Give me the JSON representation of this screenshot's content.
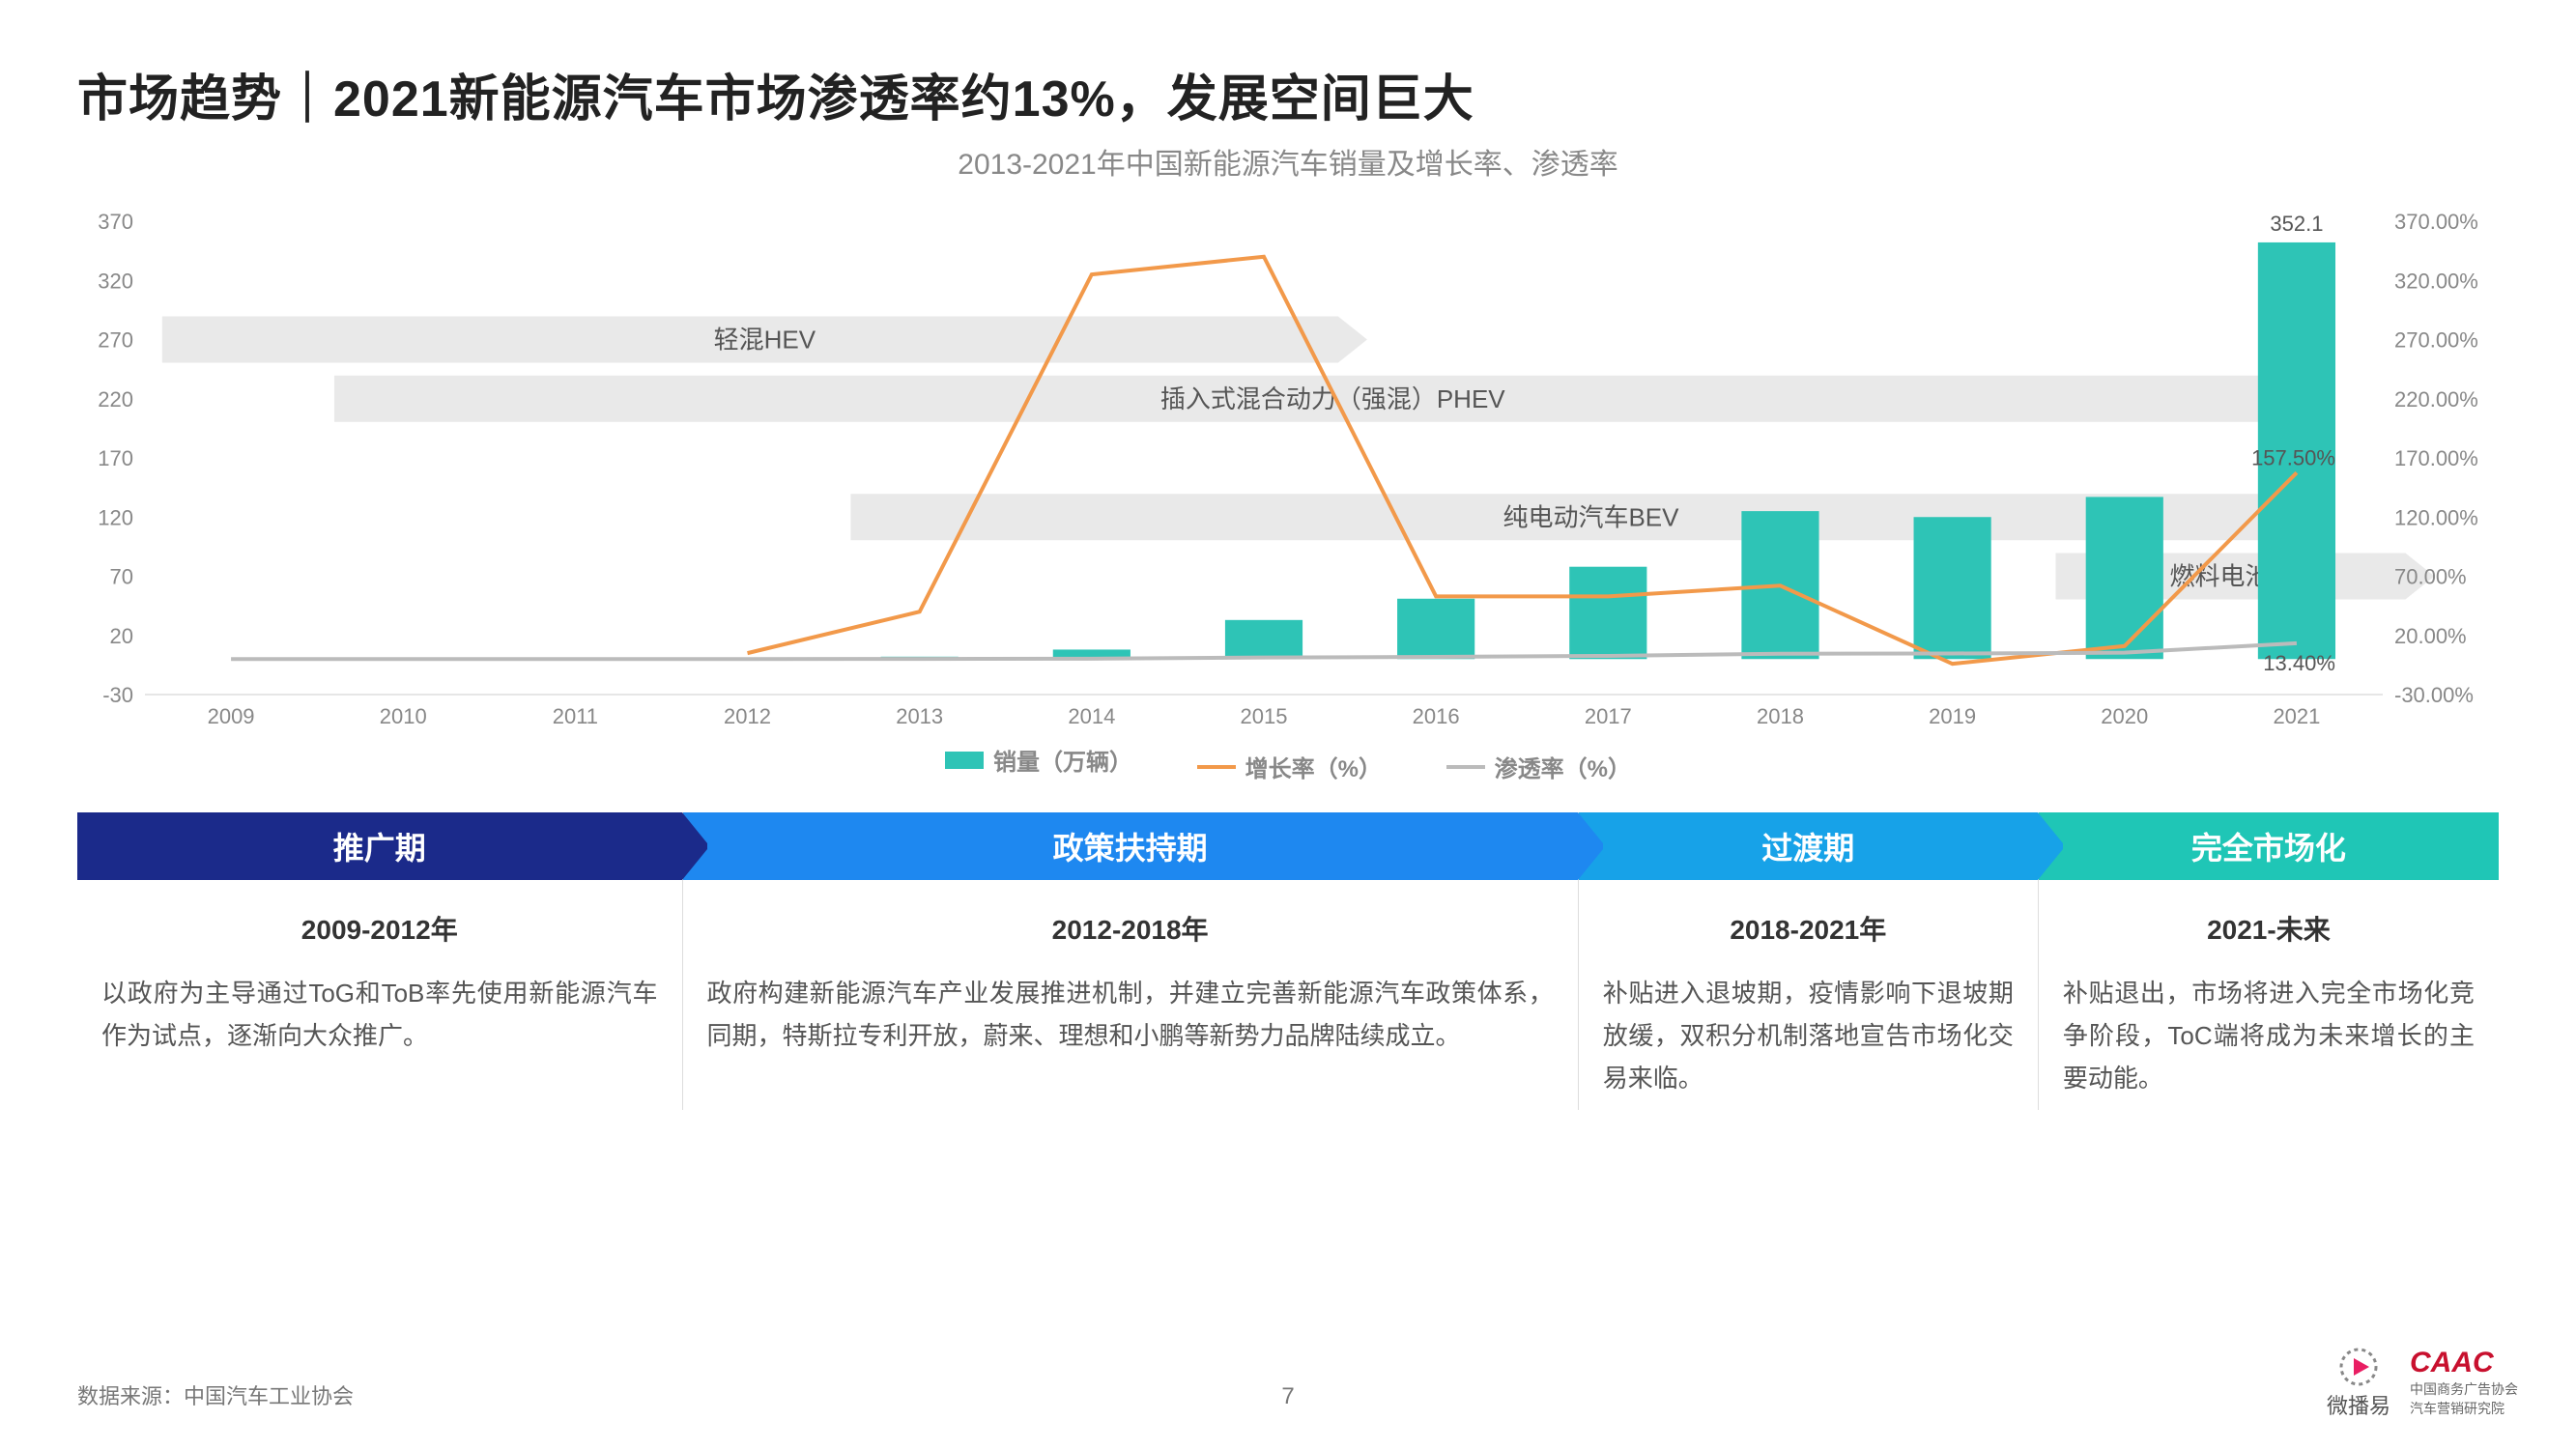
{
  "title": "市场趋势｜2021新能源汽车市场渗透率约13%，发展空间巨大",
  "subtitle": "2013-2021年中国新能源汽车销量及增长率、渗透率",
  "chart": {
    "type": "combo-bar-line",
    "years": [
      "2009",
      "2010",
      "2011",
      "2012",
      "2013",
      "2014",
      "2015",
      "2016",
      "2017",
      "2018",
      "2019",
      "2020",
      "2021"
    ],
    "sales": [
      0,
      0,
      0,
      0,
      2,
      8,
      33,
      51,
      78,
      125,
      120,
      137,
      352.1
    ],
    "growth_pct": [
      null,
      null,
      null,
      5,
      40,
      325,
      340,
      53,
      53,
      62,
      -4,
      11,
      157.5
    ],
    "penetration_pct": [
      0,
      0,
      0,
      0,
      0.1,
      0.3,
      1.3,
      1.8,
      2.7,
      4.5,
      4.7,
      5.4,
      13.4
    ],
    "left_ylim": [
      -30,
      370
    ],
    "left_ticks": [
      -30,
      20,
      70,
      120,
      170,
      220,
      270,
      320,
      370
    ],
    "right_ylim": [
      -30,
      370
    ],
    "right_ticks": [
      "-30.00%",
      "20.00%",
      "70.00%",
      "120.00%",
      "170.00%",
      "220.00%",
      "270.00%",
      "320.00%",
      "370.00%"
    ],
    "highlight_sales": "352.1",
    "highlight_growth": "157.50%",
    "highlight_pen": "13.40%",
    "colors": {
      "bar": "#2ec4b6",
      "growth": "#f2994a",
      "pen": "#bbbbbb",
      "band": "#e9e9e9",
      "axis": "#888888",
      "bg": "#ffffff"
    },
    "bands": [
      {
        "label": "轻混HEV",
        "start": 0,
        "end": 6.6,
        "row": 0
      },
      {
        "label": "插入式混合动力（强混）PHEV",
        "start": 1,
        "end": 12.2,
        "row": 1
      },
      {
        "label": "纯电动汽车BEV",
        "start": 4,
        "end": 12.2,
        "row": 2
      },
      {
        "label": "燃料电池汽车",
        "start": 11,
        "end": 12.8,
        "row": 3
      }
    ],
    "legend": {
      "sales": "销量（万辆）",
      "growth": "增长率（%）",
      "pen": "渗透率（%）"
    }
  },
  "phases": [
    {
      "name": "推广期",
      "color": "#1b2a8a",
      "years": "2009-2012年",
      "width": 25,
      "desc": "以政府为主导通过ToG和ToB率先使用新能源汽车作为试点，逐渐向大众推广。"
    },
    {
      "name": "政策扶持期",
      "color": "#1e88f0",
      "years": "2012-2018年",
      "width": 37,
      "desc": "政府构建新能源汽车产业发展推进机制，并建立完善新能源汽车政策体系，同期，特斯拉专利开放，蔚来、理想和小鹏等新势力品牌陆续成立。"
    },
    {
      "name": "过渡期",
      "color": "#17a2e8",
      "years": "2018-2021年",
      "width": 19,
      "desc": "补贴进入退坡期，疫情影响下退坡期放缓，双积分机制落地宣告市场化交易来临。"
    },
    {
      "name": "完全市场化",
      "color": "#1fc6b6",
      "years": "2021-未来",
      "width": 19,
      "desc": "补贴退出，市场将进入完全市场化竞争阶段，ToC端将成为未来增长的主要动能。"
    }
  ],
  "footer": "数据来源：中国汽车工业协会",
  "page": "7",
  "logo1": "微播易",
  "logo2": "CAAC",
  "logo2_sub1": "中国商务广告协会",
  "logo2_sub2": "汽车营销研究院"
}
